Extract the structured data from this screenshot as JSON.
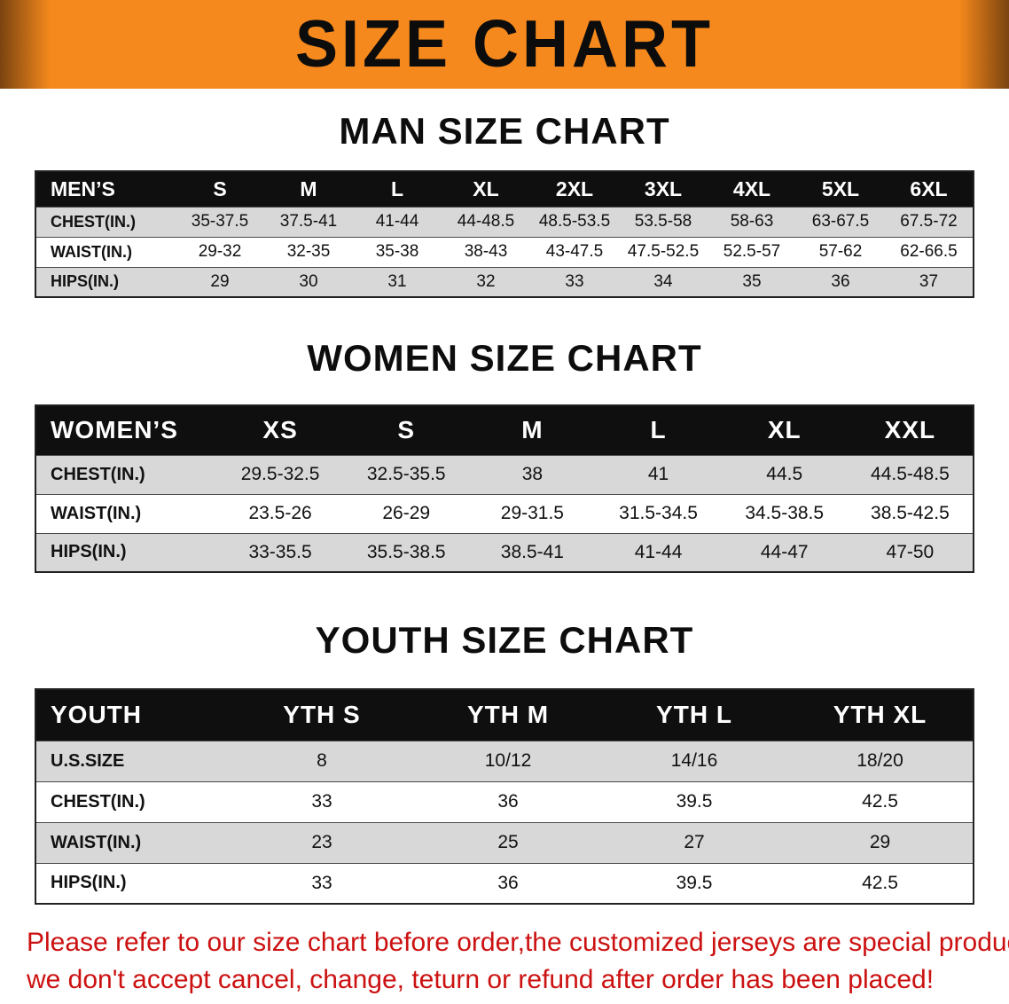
{
  "banner": {
    "title": "SIZE CHART",
    "bg_color": "#f6891d",
    "edge_color": "#7a4410"
  },
  "sections": {
    "men": {
      "title": "MAN SIZE CHART"
    },
    "women": {
      "title": "WOMEN SIZE CHART"
    },
    "youth": {
      "title": "YOUTH SIZE CHART"
    }
  },
  "men_table": {
    "header": [
      "MEN’S",
      "S",
      "M",
      "L",
      "XL",
      "2XL",
      "3XL",
      "4XL",
      "5XL",
      "6XL"
    ],
    "rows": [
      {
        "label": "CHEST(IN.)",
        "cells": [
          "35-37.5",
          "37.5-41",
          "41-44",
          "44-48.5",
          "48.5-53.5",
          "53.5-58",
          "58-63",
          "63-67.5",
          "67.5-72"
        ]
      },
      {
        "label": "WAIST(IN.)",
        "cells": [
          "29-32",
          "32-35",
          "35-38",
          "38-43",
          "43-47.5",
          "47.5-52.5",
          "52.5-57",
          "57-62",
          "62-66.5"
        ]
      },
      {
        "label": "HIPS(IN.)",
        "cells": [
          "29",
          "30",
          "31",
          "32",
          "33",
          "34",
          "35",
          "36",
          "37"
        ]
      }
    ]
  },
  "women_table": {
    "header": [
      "WOMEN’S",
      "XS",
      "S",
      "M",
      "L",
      "XL",
      "XXL"
    ],
    "rows": [
      {
        "label": "CHEST(IN.)",
        "cells": [
          "29.5-32.5",
          "32.5-35.5",
          "38",
          "41",
          "44.5",
          "44.5-48.5"
        ]
      },
      {
        "label": "WAIST(IN.)",
        "cells": [
          "23.5-26",
          "26-29",
          "29-31.5",
          "31.5-34.5",
          "34.5-38.5",
          "38.5-42.5"
        ]
      },
      {
        "label": "HIPS(IN.)",
        "cells": [
          "33-35.5",
          "35.5-38.5",
          "38.5-41",
          "41-44",
          "44-47",
          "47-50"
        ]
      }
    ]
  },
  "youth_table": {
    "header": [
      "YOUTH",
      "YTH S",
      "YTH M",
      "YTH L",
      "YTH XL"
    ],
    "rows": [
      {
        "label": "U.S.SIZE",
        "cells": [
          "8",
          "10/12",
          "14/16",
          "18/20"
        ]
      },
      {
        "label": "CHEST(IN.)",
        "cells": [
          "33",
          "36",
          "39.5",
          "42.5"
        ]
      },
      {
        "label": "WAIST(IN.)",
        "cells": [
          "23",
          "25",
          "27",
          "29"
        ]
      },
      {
        "label": "HIPS(IN.)",
        "cells": [
          "33",
          "36",
          "39.5",
          "42.5"
        ]
      }
    ]
  },
  "disclaimer": {
    "line1": "Please refer to our size chart before order,the customized jerseys are special products,",
    "line2": "we don't accept cancel, change, teturn or refund after order has been placed!",
    "text_color": "#cc1111"
  }
}
